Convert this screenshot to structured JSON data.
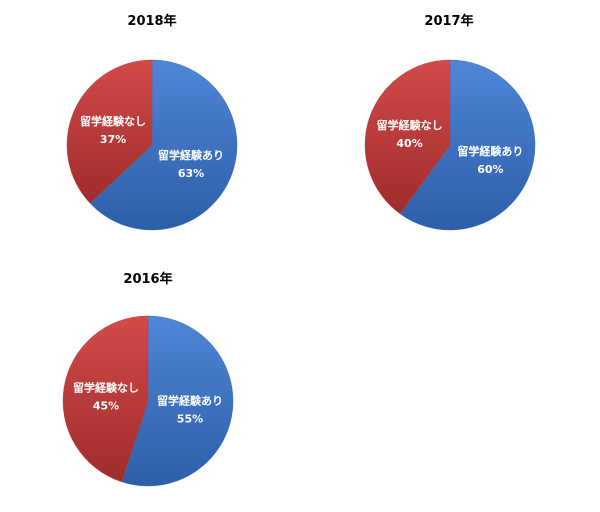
{
  "chart_data": [
    {
      "type": "pie",
      "title": "2018年",
      "categories": [
        "留学経験あり",
        "留学経験なし"
      ],
      "values": [
        63,
        37
      ],
      "value_labels": [
        "63%",
        "37%"
      ],
      "colors": [
        "#3a70c4",
        "#c23b3a"
      ]
    },
    {
      "type": "pie",
      "title": "2017年",
      "categories": [
        "留学経験あり",
        "留学経験なし"
      ],
      "values": [
        60,
        40
      ],
      "value_labels": [
        "60%",
        "40%"
      ],
      "colors": [
        "#3a70c4",
        "#c23b3a"
      ]
    },
    {
      "type": "pie",
      "title": "2016年",
      "categories": [
        "留学経験あり",
        "留学経験なし"
      ],
      "values": [
        55,
        45
      ],
      "value_labels": [
        "55%",
        "45%"
      ],
      "colors": [
        "#3a70c4",
        "#c23b3a"
      ]
    }
  ]
}
